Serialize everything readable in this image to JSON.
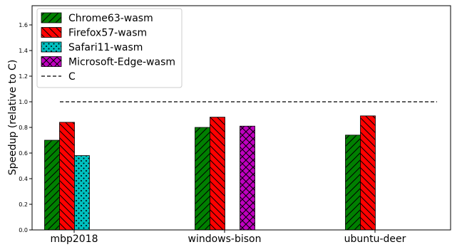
{
  "chart_data": {
    "type": "bar",
    "categories": [
      "mbp2018",
      "windows-bison",
      "ubuntu-deer"
    ],
    "series": [
      {
        "name": "Chrome63-wasm",
        "color": "#008000",
        "hatch": "forward-diagonal",
        "values": [
          0.7,
          0.8,
          0.74
        ]
      },
      {
        "name": "Firefox57-wasm",
        "color": "#ff0000",
        "hatch": "back-diagonal",
        "values": [
          0.84,
          0.88,
          0.89
        ]
      },
      {
        "name": "Safari11-wasm",
        "color": "#00bfbf",
        "hatch": "dots",
        "values": [
          0.58,
          null,
          null
        ]
      },
      {
        "name": "Microsoft-Edge-wasm",
        "color": "#bf00bf",
        "hatch": "crosshatch",
        "values": [
          null,
          0.81,
          null
        ]
      }
    ],
    "reference_line": {
      "name": "C",
      "value": 1.0,
      "style": "dashed",
      "color": "#000000"
    },
    "xlabel": "",
    "ylabel": "Speedup (relative to C)",
    "ylim": [
      0,
      1.75
    ],
    "yticks": [
      "0.0",
      "0.2",
      "0.4",
      "0.6",
      "0.8",
      "1.0",
      "1.2",
      "1.4",
      "1.6"
    ],
    "grid": false,
    "legend_position": "top-left"
  }
}
